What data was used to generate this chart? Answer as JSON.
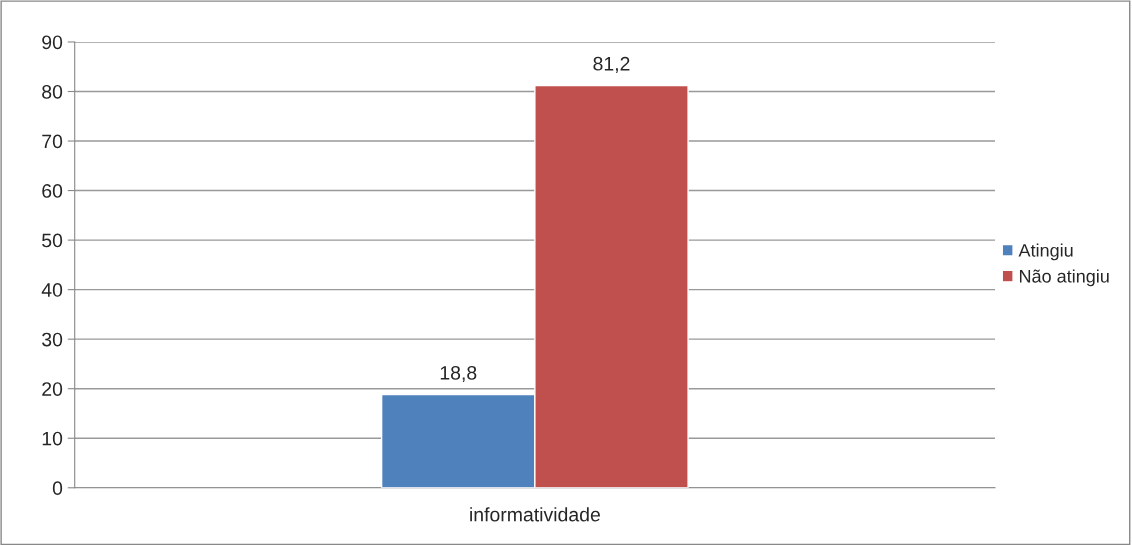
{
  "chart_data": {
    "type": "bar",
    "categories": [
      "informatividade"
    ],
    "series": [
      {
        "name": "Atingiu",
        "color": "#4f81bd",
        "values": [
          18.8
        ],
        "value_labels": [
          "18,8"
        ]
      },
      {
        "name": "Não atingiu",
        "color": "#c0504d",
        "values": [
          81.2
        ],
        "value_labels": [
          "81,2"
        ]
      }
    ],
    "ylim": [
      0,
      90
    ],
    "yticks": [
      0,
      10,
      20,
      30,
      40,
      50,
      60,
      70,
      80,
      90
    ],
    "grid": "y",
    "legend": "right"
  }
}
